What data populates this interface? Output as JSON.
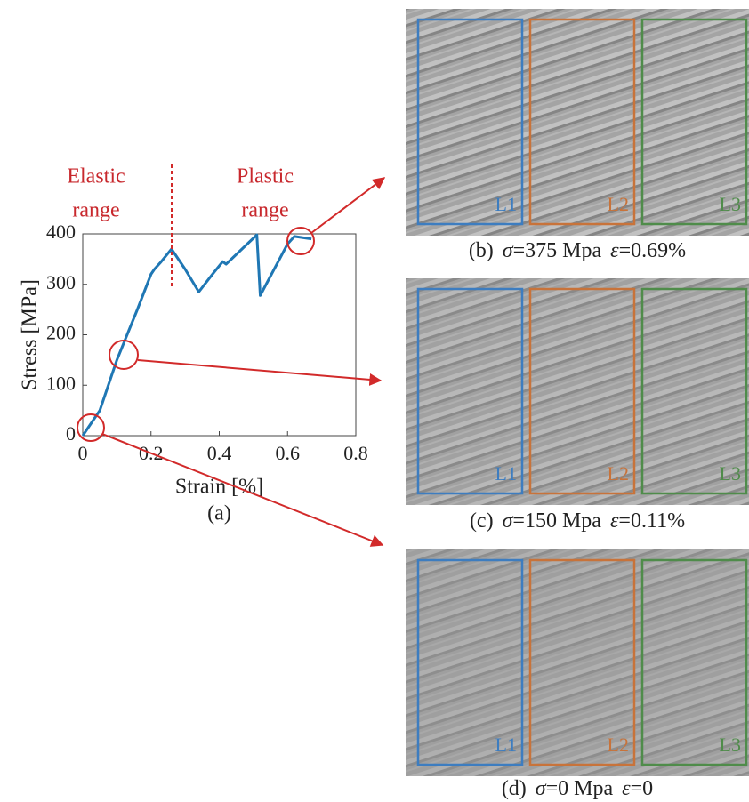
{
  "chart_data": {
    "type": "line",
    "x": [
      0,
      0.05,
      0.1,
      0.13,
      0.16,
      0.2,
      0.21,
      0.23,
      0.26,
      0.3,
      0.34,
      0.38,
      0.41,
      0.42,
      0.51,
      0.52,
      0.6,
      0.62,
      0.67
    ],
    "series": [
      {
        "color": "#1f77b4",
        "values": [
          0,
          50,
          150,
          200,
          250,
          320,
          330,
          345,
          370,
          330,
          285,
          320,
          345,
          340,
          398,
          278,
          380,
          395,
          390
        ]
      }
    ],
    "xlim": [
      0,
      0.8
    ],
    "ylim": [
      0,
      400
    ],
    "xticks": [
      0,
      0.2,
      0.4,
      0.6,
      0.8
    ],
    "yticks": [
      0,
      100,
      200,
      300,
      400
    ],
    "xlabel": "Strain [%]",
    "ylabel": "Stress [MPa]",
    "caption": "(a)",
    "annotations": [
      {
        "lines": [
          "Elastic",
          "range"
        ]
      },
      {
        "lines": [
          "Plastic",
          "range"
        ]
      }
    ]
  },
  "panels": [
    {
      "label": "(b)",
      "stress_symbol": "σ",
      "stress": "=375 Mpa",
      "strain_symbol": "ε",
      "strain": "=0.69%",
      "regions": [
        "L1",
        "L2",
        "L3"
      ]
    },
    {
      "label": "(c)",
      "stress_symbol": "σ",
      "stress": "=150 Mpa",
      "strain_symbol": "ε",
      "strain": "=0.11%",
      "regions": [
        "L1",
        "L2",
        "L3"
      ]
    },
    {
      "label": "(d)",
      "stress_symbol": "σ",
      "stress": "=0 Mpa",
      "strain_symbol": "ε",
      "strain": "=0",
      "regions": [
        "L1",
        "L2",
        "L3"
      ]
    }
  ],
  "region_colors": [
    "#3d7dc0",
    "#c8733a",
    "#4f8c4a"
  ]
}
